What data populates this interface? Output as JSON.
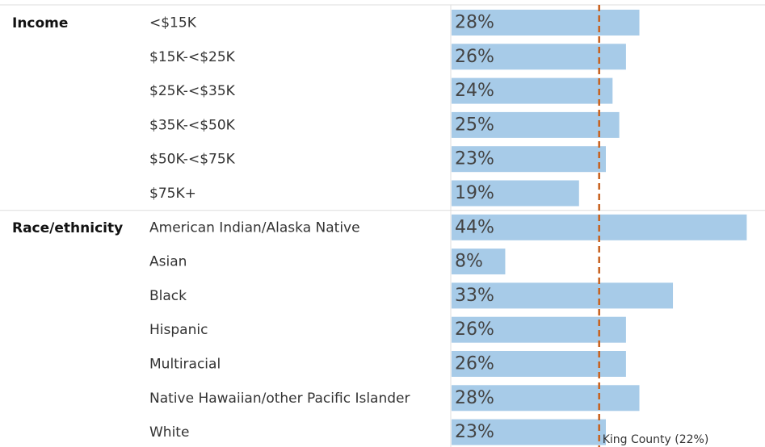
{
  "chart_data": {
    "type": "grouped-hbar",
    "color": "#a7cbe8",
    "xlim": [
      0,
      46
    ],
    "groups": [
      {
        "name": "Income",
        "categories": [
          "<$15K",
          "$15K-<$25K",
          "$25K-<$35K",
          "$35K-<$50K",
          "$50K-<$75K",
          "$75K+"
        ],
        "values": [
          28,
          26,
          24,
          25,
          23,
          19
        ],
        "value_labels": [
          "28%",
          "26%",
          "24%",
          "25%",
          "23%",
          "19%"
        ]
      },
      {
        "name": "Race/ethnicity",
        "categories": [
          "American Indian/Alaska Native",
          "Asian",
          "Black",
          "Hispanic",
          "Multiracial",
          "Native Hawaiian/other Pacific Islander",
          "White"
        ],
        "values": [
          44,
          8,
          33,
          26,
          26,
          28,
          23
        ],
        "value_labels": [
          "44%",
          "8%",
          "33%",
          "26%",
          "26%",
          "28%",
          "23%"
        ]
      }
    ],
    "reference_line": {
      "value": 22,
      "label": "King County (22%)",
      "color": "#c8601c"
    }
  }
}
